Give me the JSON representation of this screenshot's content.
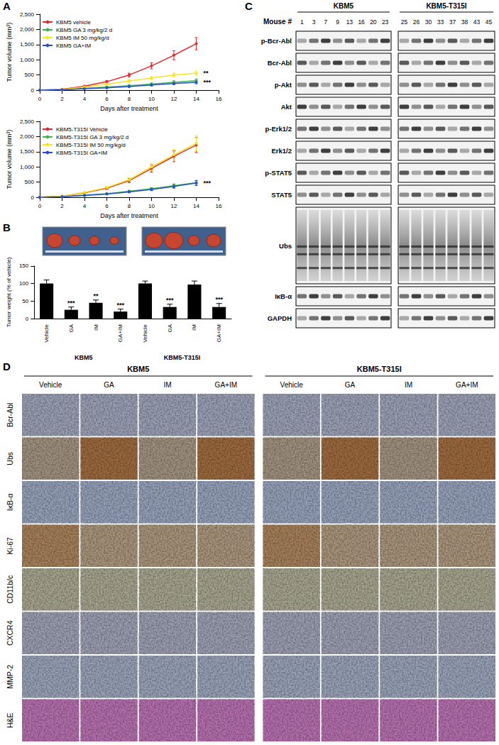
{
  "panel_labels": [
    "A",
    "B",
    "C",
    "D"
  ],
  "chart_data": [
    {
      "type": "line",
      "x_label": "Days after treatment",
      "y_label": "Tumor volume (mm³)",
      "x": [
        0,
        2,
        4,
        6,
        8,
        10,
        12,
        14
      ],
      "xlim": [
        0,
        16
      ],
      "xticks": [
        0,
        2,
        4,
        6,
        8,
        10,
        12,
        14,
        16
      ],
      "ylim": [
        0,
        2500
      ],
      "yticks": [
        0,
        500,
        {
          "value": 1000,
          "label": "1,000"
        },
        {
          "value": 1500,
          "label": "1,500"
        },
        {
          "value": 2000,
          "label": "2,000"
        },
        {
          "value": 2500,
          "label": "2,500"
        }
      ],
      "grid": false,
      "legend": "upper left",
      "marker": "circle",
      "series": [
        {
          "name": "KBM5 vehicle",
          "color": "#e8262a",
          "values": [
            0,
            30,
            130,
            280,
            500,
            800,
            1150,
            1530
          ],
          "error": [
            0,
            10,
            20,
            40,
            60,
            100,
            150,
            200
          ]
        },
        {
          "name": "KBM5 GA 3 mg/kg/2 d",
          "color": "#3cb44b",
          "values": [
            0,
            20,
            60,
            100,
            150,
            200,
            260,
            310
          ],
          "error": [
            0,
            5,
            10,
            20,
            30,
            40,
            50,
            60
          ]
        },
        {
          "name": "KBM5 IM 50 mg/kg/d",
          "color": "#f5e61e",
          "values": [
            0,
            25,
            100,
            200,
            300,
            400,
            500,
            560
          ],
          "error": [
            0,
            5,
            15,
            30,
            40,
            50,
            60,
            70
          ],
          "annotation": "**"
        },
        {
          "name": "KBM5 GA+IM",
          "color": "#2a4dc9",
          "values": [
            0,
            15,
            50,
            80,
            120,
            170,
            220,
            260
          ],
          "error": [
            0,
            5,
            10,
            15,
            20,
            30,
            40,
            50
          ],
          "annotation": "***"
        }
      ]
    },
    {
      "type": "line",
      "x_label": "Days after treatment",
      "y_label": "Tumor volume (mm³)",
      "x": [
        0,
        2,
        4,
        6,
        8,
        10,
        12,
        14
      ],
      "xlim": [
        0,
        16
      ],
      "xticks": [
        0,
        2,
        4,
        6,
        8,
        10,
        12,
        14,
        16
      ],
      "ylim": [
        0,
        2500
      ],
      "yticks": [
        0,
        500,
        {
          "value": 1000,
          "label": "1,000"
        },
        {
          "value": 1500,
          "label": "1,500"
        },
        {
          "value": 2000,
          "label": "2,000"
        },
        {
          "value": 2500,
          "label": "2,500"
        }
      ],
      "grid": false,
      "legend": "upper left",
      "marker": "circle",
      "series": [
        {
          "name": "KBM5-T315I Vehicle",
          "color": "#e8262a",
          "values": [
            0,
            40,
            150,
            300,
            550,
            950,
            1350,
            1720
          ],
          "error": [
            0,
            10,
            20,
            40,
            70,
            120,
            180,
            250
          ]
        },
        {
          "name": "KBM5-T315I GA 3 mg/kg/2 d",
          "color": "#3cb44b",
          "values": [
            0,
            20,
            70,
            120,
            200,
            280,
            380,
            480
          ],
          "error": [
            0,
            5,
            10,
            20,
            30,
            40,
            60,
            80
          ]
        },
        {
          "name": "KBM5-T315I IM 50 mg/kg/d",
          "color": "#f5e61e",
          "values": [
            0,
            40,
            160,
            320,
            580,
            1000,
            1400,
            1780
          ],
          "error": [
            0,
            10,
            20,
            40,
            70,
            120,
            180,
            250
          ]
        },
        {
          "name": "KBM5-T315I GA+IM",
          "color": "#2a4dc9",
          "values": [
            0,
            20,
            60,
            110,
            180,
            260,
            360,
            470
          ],
          "error": [
            0,
            5,
            10,
            20,
            30,
            40,
            60,
            80
          ],
          "annotation": "***"
        }
      ]
    },
    {
      "type": "bar",
      "y_label": "Tumor weight (% of vehicle)",
      "categories": [
        "Vehicle",
        "GA",
        "IM",
        "GA+IM",
        "Vehicle",
        "GA",
        "IM",
        "GA+IM"
      ],
      "groups": [
        "KBM5",
        "KBM5-T315I"
      ],
      "values": [
        100,
        25,
        45,
        20,
        100,
        33,
        97,
        33
      ],
      "error": [
        10,
        8,
        8,
        7,
        7,
        8,
        10,
        10
      ],
      "annotations": [
        null,
        "***",
        "**",
        "***",
        null,
        "***",
        null,
        "***"
      ],
      "color": "#000000",
      "ylim": [
        0,
        150
      ],
      "yticks": [
        0,
        50,
        100,
        150
      ],
      "grid": false
    }
  ],
  "western_blot": {
    "mouse_label": "Mouse #",
    "groups": [
      {
        "name": "KBM5",
        "mice": [
          1,
          3,
          7,
          9,
          13,
          16,
          20,
          23
        ]
      },
      {
        "name": "KBM5-T315I",
        "mice": [
          25,
          26,
          30,
          33,
          37,
          38,
          43,
          45
        ]
      }
    ],
    "rows": [
      {
        "label": "p-Bcr-Abl"
      },
      {
        "label": "Bcr-Abl"
      },
      {
        "label": "p-Akt"
      },
      {
        "label": "Akt"
      },
      {
        "label": "p-Erk1/2"
      },
      {
        "label": "Erk1/2"
      },
      {
        "label": "p-STAT5"
      },
      {
        "label": "STAT5"
      },
      {
        "label": "Ubs",
        "type": "smear"
      },
      {
        "label": "IκB-α"
      },
      {
        "label": "GAPDH"
      }
    ]
  },
  "ihc": {
    "groups": [
      "KBM5",
      "KBM5-T315I"
    ],
    "columns": [
      "Vehicle",
      "GA",
      "IM",
      "GA+IM"
    ],
    "rows": [
      "Bcr-Abl",
      "Ubs",
      "IκB-α",
      "Ki-67",
      "CD11b/c",
      "CXCR4",
      "MMP-2",
      "H&E"
    ]
  }
}
